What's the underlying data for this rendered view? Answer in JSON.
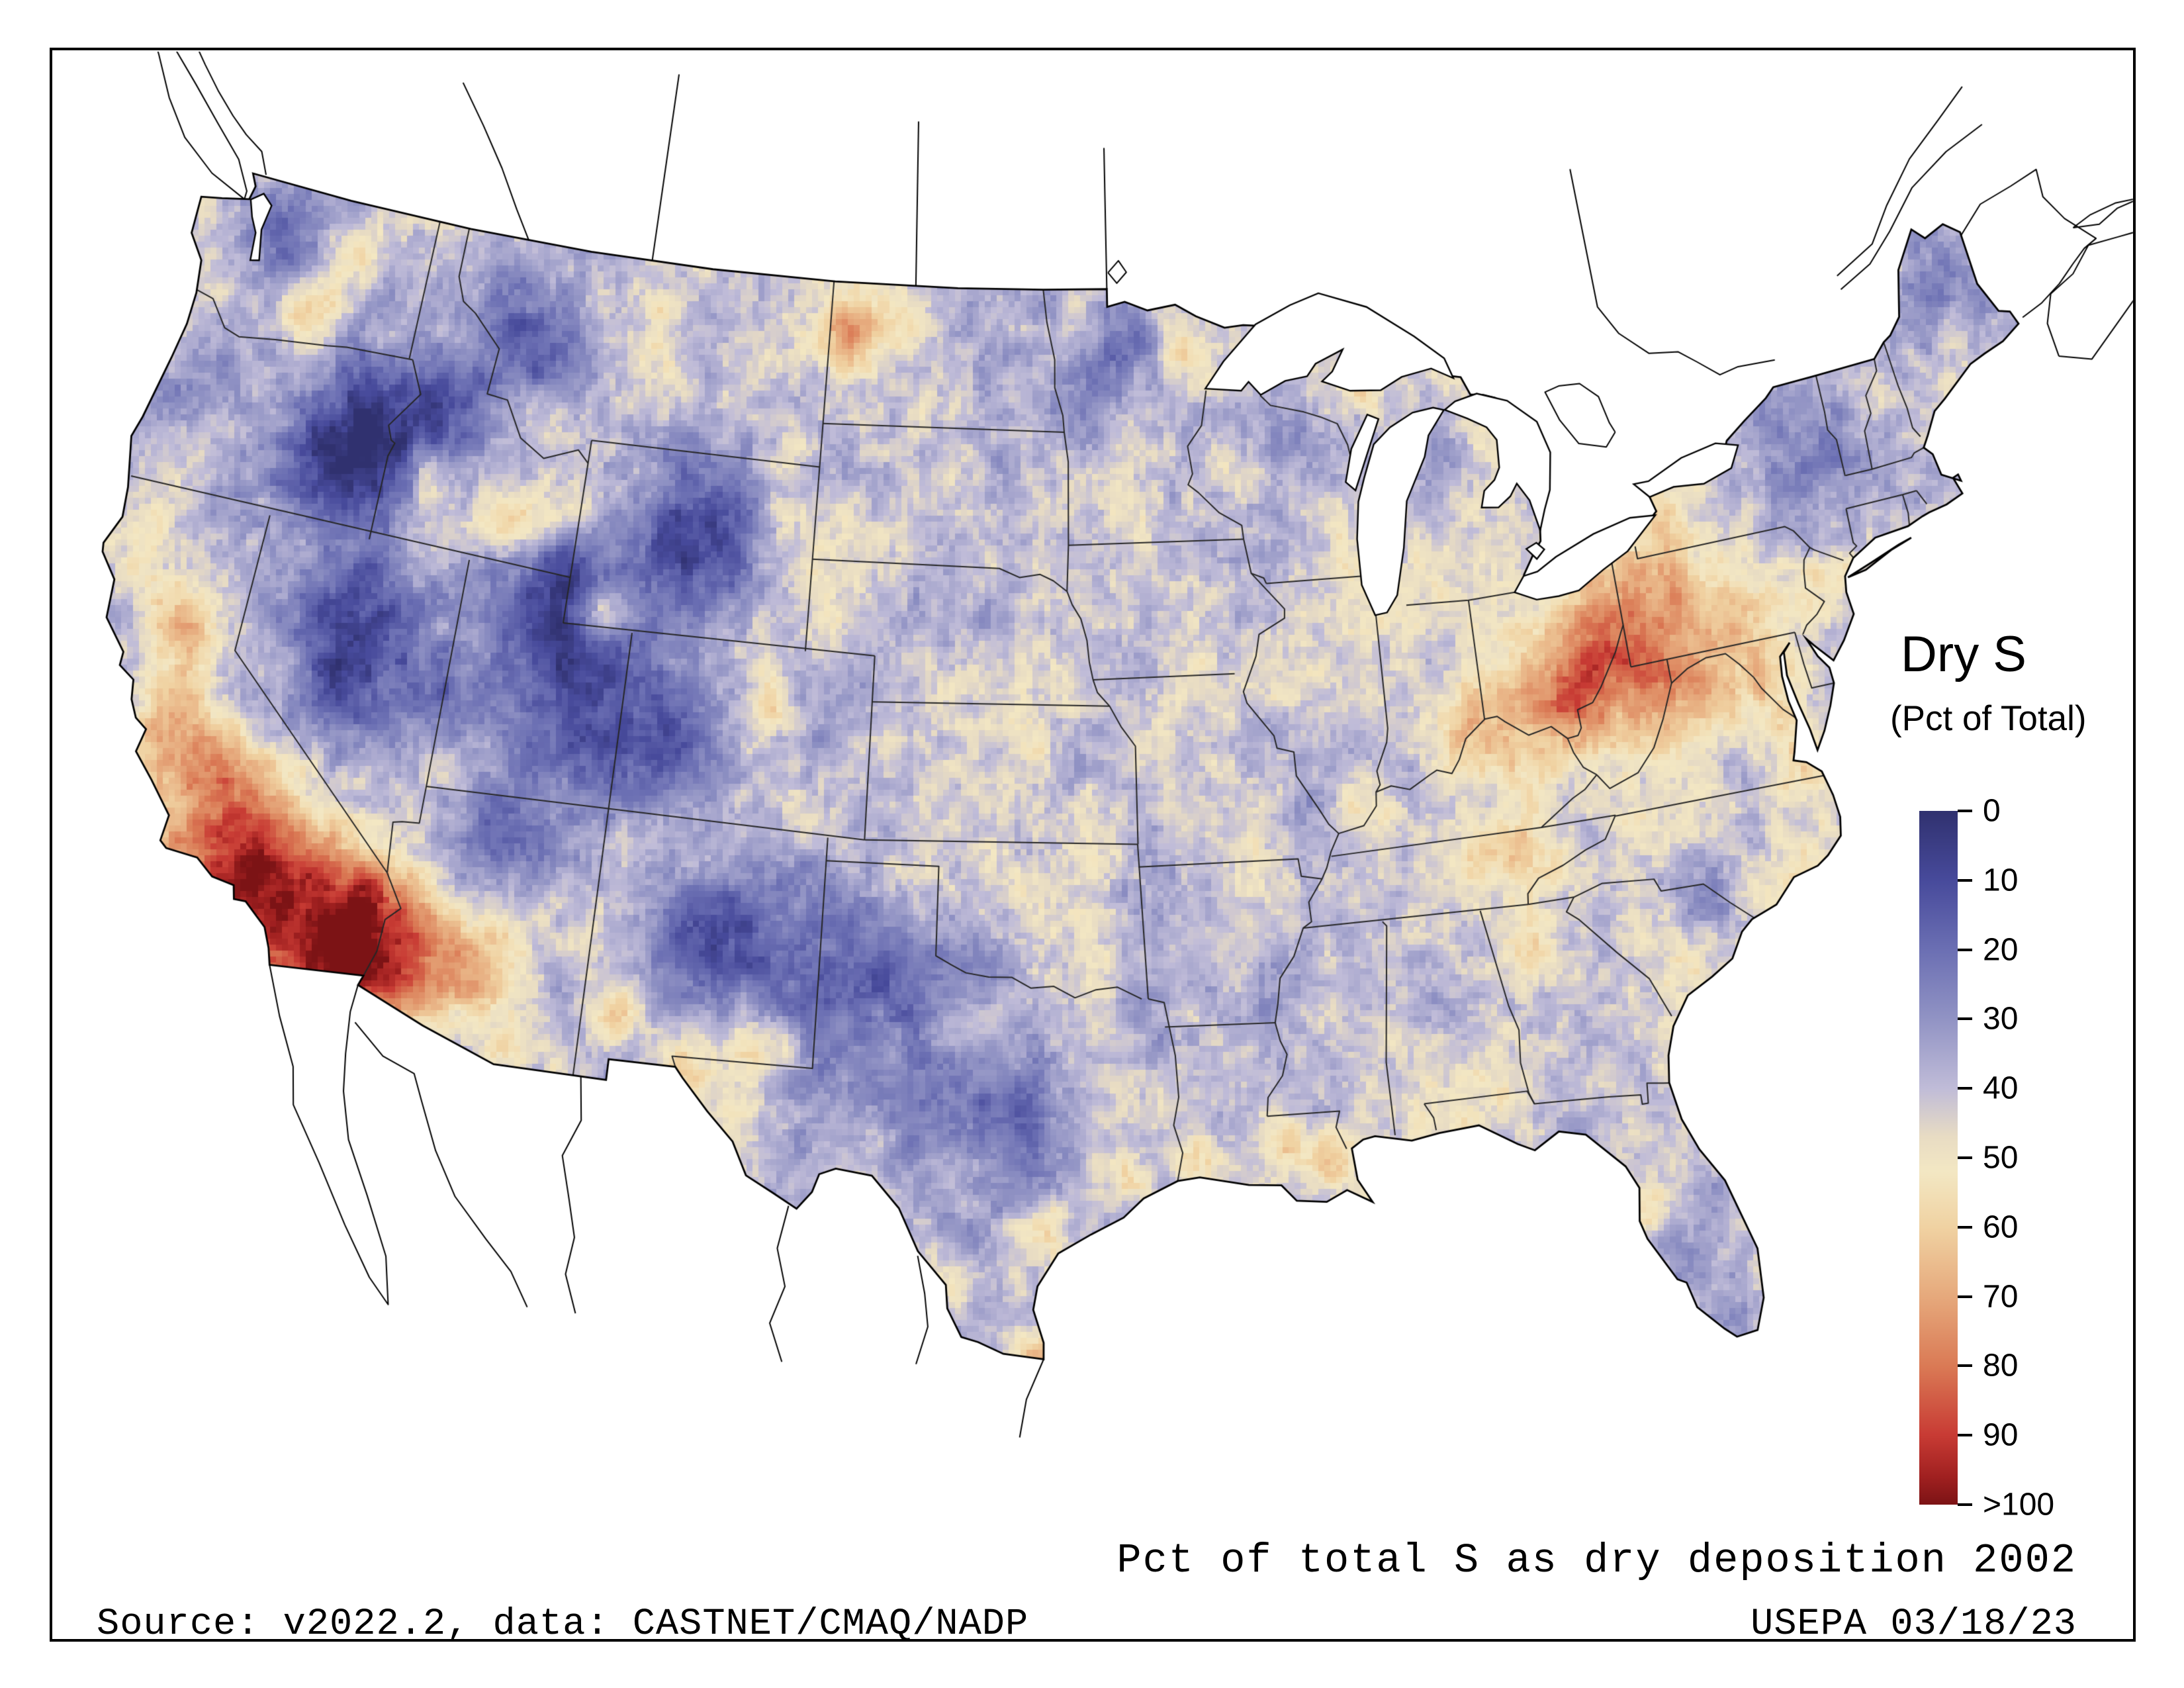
{
  "legend": {
    "title": "Dry S",
    "subtitle": "(Pct of Total)",
    "ticks": [
      "0",
      "10",
      "20",
      "30",
      "40",
      "50",
      "60",
      "70",
      "80",
      "90",
      ">100"
    ],
    "colormap": [
      {
        "t": 0.0,
        "color": "#30316f"
      },
      {
        "t": 0.1,
        "color": "#474a9b"
      },
      {
        "t": 0.2,
        "color": "#6b6fb3"
      },
      {
        "t": 0.3,
        "color": "#9193c4"
      },
      {
        "t": 0.4,
        "color": "#c0bcd8"
      },
      {
        "t": 0.47,
        "color": "#e8dcc3"
      },
      {
        "t": 0.52,
        "color": "#f3e7c3"
      },
      {
        "t": 0.6,
        "color": "#f0d2a2"
      },
      {
        "t": 0.7,
        "color": "#e6a97c"
      },
      {
        "t": 0.8,
        "color": "#da7a55"
      },
      {
        "t": 0.9,
        "color": "#c83b34"
      },
      {
        "t": 0.96,
        "color": "#a02020"
      },
      {
        "t": 1.0,
        "color": "#7c1315"
      }
    ]
  },
  "caption": "Pct of total S as dry deposition 2002",
  "footer": {
    "source": "Source: v2022.2, data: CASTNET/CMAQ/NADP",
    "agency_date": "USEPA 03/18/23"
  },
  "map": {
    "colorbar_min_label": "0",
    "colorbar_max_label": ">100",
    "year_shown": "2002"
  }
}
